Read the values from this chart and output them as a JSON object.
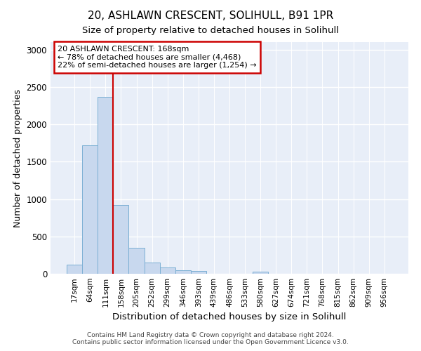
{
  "title": "20, ASHLAWN CRESCENT, SOLIHULL, B91 1PR",
  "subtitle": "Size of property relative to detached houses in Solihull",
  "xlabel": "Distribution of detached houses by size in Solihull",
  "ylabel": "Number of detached properties",
  "footer_line1": "Contains HM Land Registry data © Crown copyright and database right 2024.",
  "footer_line2": "Contains public sector information licensed under the Open Government Licence v3.0.",
  "categories": [
    "17sqm",
    "64sqm",
    "111sqm",
    "158sqm",
    "205sqm",
    "252sqm",
    "299sqm",
    "346sqm",
    "393sqm",
    "439sqm",
    "486sqm",
    "533sqm",
    "580sqm",
    "627sqm",
    "674sqm",
    "721sqm",
    "768sqm",
    "815sqm",
    "862sqm",
    "909sqm",
    "956sqm"
  ],
  "values": [
    125,
    1720,
    2370,
    920,
    345,
    155,
    85,
    50,
    40,
    0,
    0,
    0,
    28,
    0,
    0,
    0,
    0,
    0,
    0,
    0,
    0
  ],
  "bar_color": "#c8d8ee",
  "bar_edge_color": "#7bafd4",
  "red_line_index": 2.5,
  "red_line_color": "#cc0000",
  "annotation_text": "20 ASHLAWN CRESCENT: 168sqm\n← 78% of detached houses are smaller (4,468)\n22% of semi-detached houses are larger (1,254) →",
  "annotation_box_facecolor": "#ffffff",
  "annotation_box_edgecolor": "#cc0000",
  "ylim": [
    0,
    3100
  ],
  "fig_facecolor": "#ffffff",
  "ax_facecolor": "#e8eef8",
  "grid_color": "#ffffff",
  "title_fontsize": 11,
  "subtitle_fontsize": 9.5,
  "ylabel_fontsize": 9,
  "xlabel_fontsize": 9.5
}
